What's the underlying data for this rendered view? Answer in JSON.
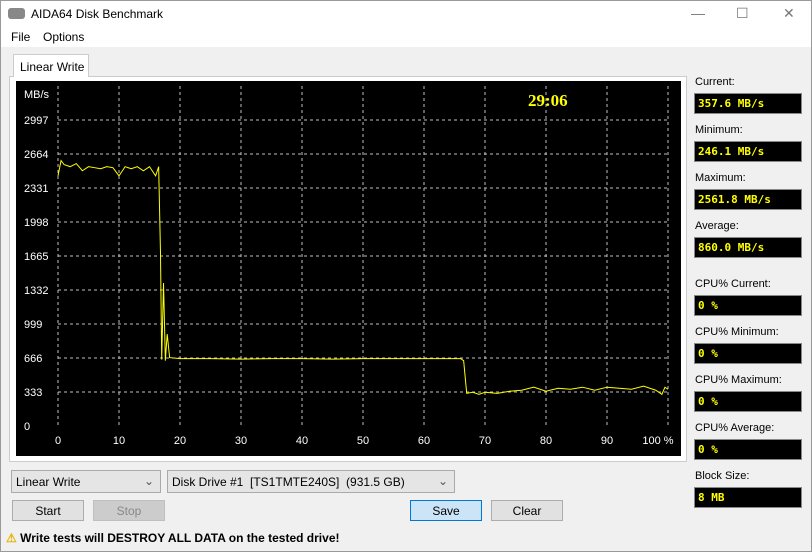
{
  "window": {
    "title": "AIDA64 Disk Benchmark"
  },
  "menu": [
    "File",
    "Options"
  ],
  "tab": "Linear Write",
  "timer": "29:06",
  "stats": [
    {
      "label": "Current:",
      "value": "357.6 MB/s"
    },
    {
      "label": "Minimum:",
      "value": "246.1 MB/s"
    },
    {
      "label": "Maximum:",
      "value": "2561.8 MB/s"
    },
    {
      "label": "Average:",
      "value": "860.0 MB/s"
    },
    {
      "label": "CPU% Current:",
      "value": "0 %"
    },
    {
      "label": "CPU% Minimum:",
      "value": "0 %"
    },
    {
      "label": "CPU% Maximum:",
      "value": "0 %"
    },
    {
      "label": "CPU% Average:",
      "value": "0 %"
    },
    {
      "label": "Block Size:",
      "value": "8 MB"
    }
  ],
  "controls": {
    "test_select": "Linear Write",
    "drive_select": "Disk Drive #1  [TS1TMTE240S]  (931.5 GB)",
    "start": "Start",
    "stop": "Stop",
    "save": "Save",
    "clear": "Clear"
  },
  "warning": "Write tests will DESTROY ALL DATA on the tested drive!",
  "colors": {
    "line": "#ffff00",
    "background": "#000000",
    "grid": "#c0c0c0"
  },
  "chart_data": {
    "type": "line",
    "ylabel": "MB/s",
    "yticks": [
      0,
      333,
      666,
      999,
      1332,
      1665,
      1998,
      2331,
      2664,
      2997
    ],
    "xticks": [
      "0",
      "10",
      "20",
      "30",
      "40",
      "50",
      "60",
      "70",
      "80",
      "90",
      "100 %"
    ],
    "xlim": [
      0,
      100
    ],
    "ylim": [
      0,
      3000
    ],
    "grid": true,
    "x": [
      0,
      0.5,
      1,
      2,
      3,
      4,
      5,
      6,
      7,
      8,
      9,
      10,
      11,
      12,
      13,
      14,
      15,
      16,
      16.5,
      16.8,
      17,
      17.3,
      17.6,
      17.9,
      18.3,
      20,
      25,
      30,
      35,
      40,
      45,
      50,
      55,
      60,
      65,
      66,
      66.5,
      67,
      68,
      69,
      70,
      72,
      74,
      76,
      78,
      80,
      82,
      84,
      86,
      88,
      90,
      92,
      94,
      96,
      98,
      99,
      99.5,
      100
    ],
    "values": [
      2450,
      2600,
      2560,
      2540,
      2570,
      2500,
      2540,
      2530,
      2520,
      2540,
      2530,
      2450,
      2540,
      2520,
      2540,
      2500,
      2540,
      2450,
      2540,
      1700,
      650,
      1400,
      640,
      900,
      670,
      660,
      660,
      655,
      660,
      660,
      655,
      660,
      660,
      660,
      660,
      660,
      640,
      320,
      330,
      310,
      330,
      320,
      340,
      350,
      380,
      340,
      370,
      360,
      380,
      350,
      380,
      370,
      360,
      390,
      350,
      310,
      380,
      360
    ]
  }
}
